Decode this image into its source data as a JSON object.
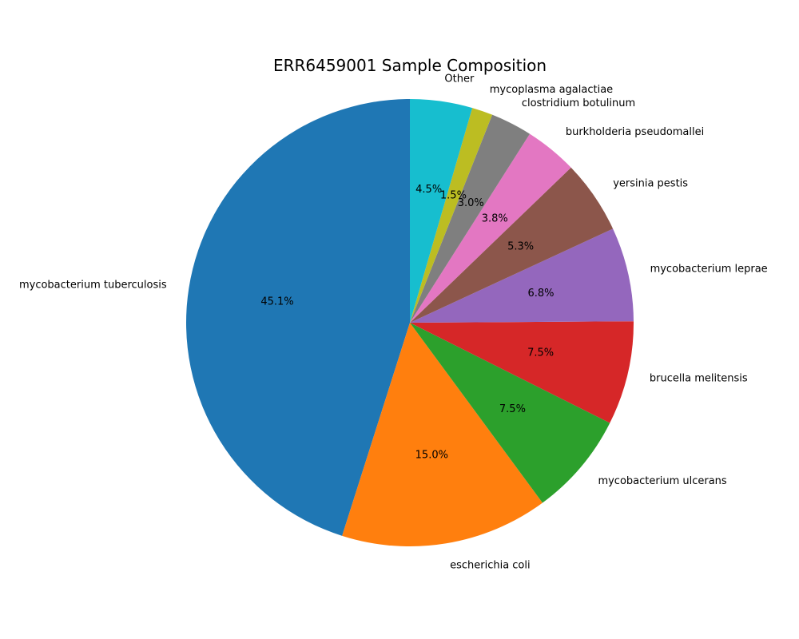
{
  "chart_data": {
    "type": "pie",
    "title": "ERR6459001 Sample Composition",
    "start_angle_deg": 90,
    "direction": "counterclockwise",
    "slices": [
      {
        "label": "mycobacterium tuberculosis",
        "value": 45.1,
        "pct_label": "45.1%",
        "color": "#1f77b4"
      },
      {
        "label": "escherichia coli",
        "value": 15.0,
        "pct_label": "15.0%",
        "color": "#ff7f0e"
      },
      {
        "label": "mycobacterium ulcerans",
        "value": 7.5,
        "pct_label": "7.5%",
        "color": "#2ca02c"
      },
      {
        "label": "brucella melitensis",
        "value": 7.5,
        "pct_label": "7.5%",
        "color": "#d62728"
      },
      {
        "label": "mycobacterium leprae",
        "value": 6.8,
        "pct_label": "6.8%",
        "color": "#9467bd"
      },
      {
        "label": "yersinia pestis",
        "value": 5.3,
        "pct_label": "5.3%",
        "color": "#8c564b"
      },
      {
        "label": "burkholderia pseudomallei",
        "value": 3.8,
        "pct_label": "3.8%",
        "color": "#e377c2"
      },
      {
        "label": "clostridium botulinum",
        "value": 3.0,
        "pct_label": "3.0%",
        "color": "#7f7f7f"
      },
      {
        "label": "mycoplasma agalactiae",
        "value": 1.5,
        "pct_label": "1.5%",
        "color": "#bcbd22"
      },
      {
        "label": "Other",
        "value": 4.5,
        "pct_label": "4.5%",
        "color": "#17becf"
      }
    ]
  }
}
